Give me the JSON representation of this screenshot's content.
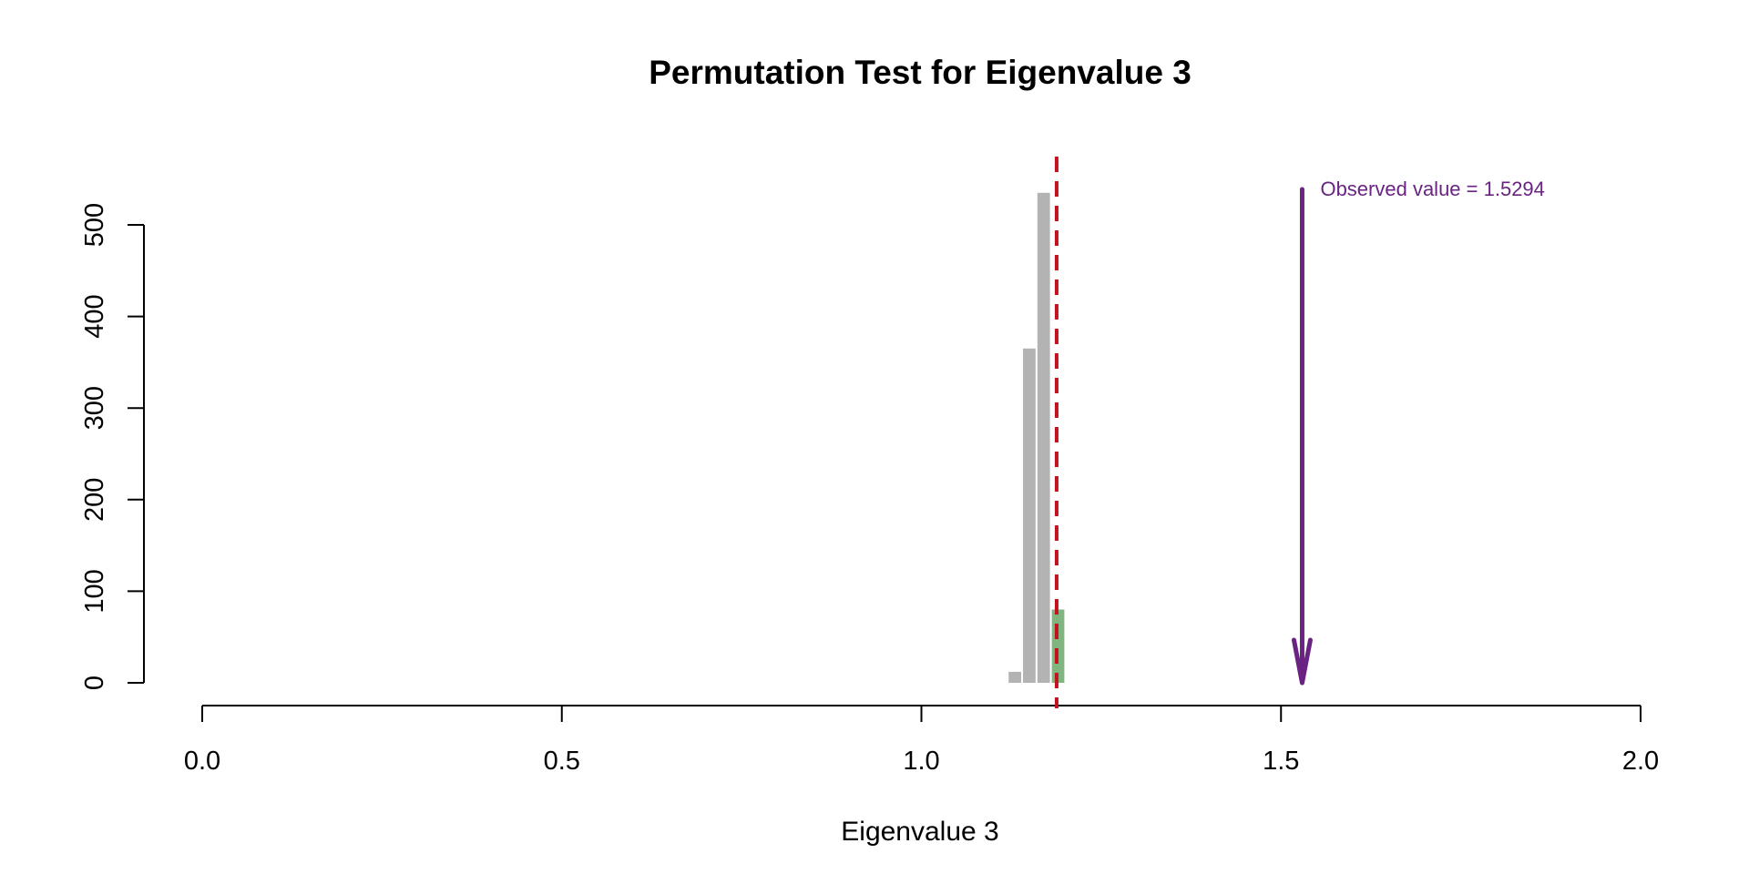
{
  "chart_data": {
    "type": "bar",
    "title": "Permutation Test for Eigenvalue 3",
    "xlabel": "Eigenvalue 3",
    "ylabel": "",
    "xlim": [
      0,
      2
    ],
    "ylim": [
      0,
      500
    ],
    "x_ticks": [
      0.0,
      0.5,
      1.0,
      1.5,
      2.0
    ],
    "x_tick_labels": [
      "0.0",
      "0.5",
      "1.0",
      "1.5",
      "2.0"
    ],
    "y_ticks": [
      0,
      100,
      200,
      300,
      400,
      500
    ],
    "y_tick_labels": [
      "0",
      "100",
      "200",
      "300",
      "400",
      "500"
    ],
    "grid": false,
    "bins": [
      {
        "x0": 1.12,
        "x1": 1.14,
        "count": 12,
        "color": "#b3b3b3"
      },
      {
        "x0": 1.14,
        "x1": 1.16,
        "count": 365,
        "color": "#b3b3b3"
      },
      {
        "x0": 1.16,
        "x1": 1.18,
        "count": 535,
        "color": "#b3b3b3"
      },
      {
        "x0": 1.18,
        "x1": 1.2,
        "count": 80,
        "color": "#7fb57f"
      }
    ],
    "critical_line": {
      "x": 1.188,
      "color": "#c1121f",
      "style": "dashed"
    },
    "observed": {
      "x": 1.5294,
      "label": "Observed value = 1.5294",
      "color": "#6a2383"
    }
  }
}
